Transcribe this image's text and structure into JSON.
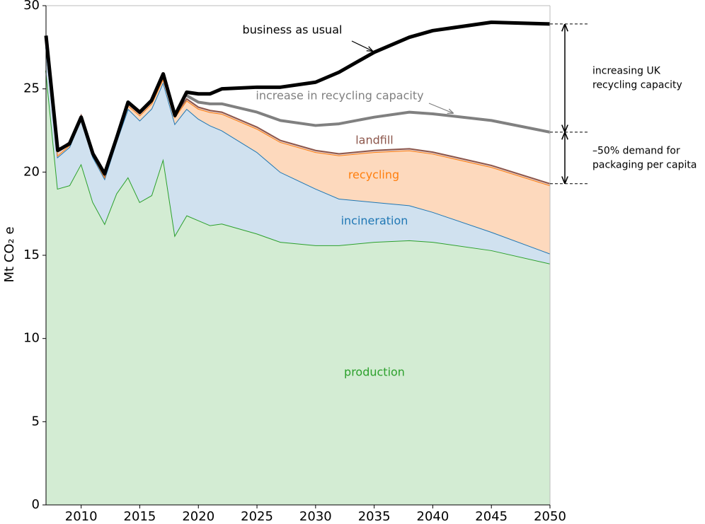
{
  "chart_data": {
    "type": "area",
    "ylabel": "Mt CO₂ e",
    "x": [
      2007,
      2008,
      2009,
      2010,
      2011,
      2012,
      2013,
      2014,
      2015,
      2016,
      2017,
      2018,
      2019,
      2020,
      2021,
      2022,
      2025,
      2027,
      2030,
      2032,
      2035,
      2038,
      2040,
      2045,
      2050
    ],
    "xlim": [
      2007,
      2050
    ],
    "xticks": [
      2010,
      2015,
      2020,
      2025,
      2030,
      2035,
      2040,
      2045,
      2050
    ],
    "ylim": [
      0,
      30
    ],
    "yticks": [
      0,
      5,
      10,
      15,
      20,
      25,
      30
    ],
    "series": [
      {
        "name": "production",
        "kind": "area",
        "color": "#2ca02c",
        "fill": "#d3ecd3",
        "values": [
          26.1,
          19.0,
          19.2,
          20.5,
          18.2,
          16.9,
          18.7,
          19.7,
          18.2,
          18.6,
          20.8,
          16.2,
          17.4,
          17.1,
          16.8,
          16.9,
          16.3,
          15.8,
          15.6,
          15.6,
          15.8,
          15.9,
          15.8,
          15.3,
          14.5
        ]
      },
      {
        "name": "incineration",
        "kind": "area",
        "color": "#1f77b4",
        "fill": "#d0e1ef",
        "values": [
          1.4,
          1.9,
          2.3,
          2.7,
          2.7,
          2.7,
          3.1,
          4.1,
          4.9,
          5.2,
          4.6,
          6.7,
          6.4,
          6.1,
          6.0,
          5.6,
          4.9,
          4.2,
          3.4,
          2.8,
          2.4,
          2.1,
          1.8,
          1.1,
          0.6
        ]
      },
      {
        "name": "recycling",
        "kind": "area",
        "color": "#ff7f0e",
        "fill": "#fdd9bd",
        "values": [
          0.2,
          0.1,
          0.1,
          0.1,
          0.1,
          0.1,
          0.2,
          0.2,
          0.3,
          0.3,
          0.2,
          0.4,
          0.5,
          0.6,
          0.8,
          1.0,
          1.4,
          1.8,
          2.2,
          2.6,
          3.0,
          3.3,
          3.5,
          3.9,
          4.1
        ]
      },
      {
        "name": "landfill",
        "kind": "area",
        "color": "#8c564b",
        "fill": "#e8cfc8",
        "values": [
          0.4,
          0.3,
          0.2,
          0.1,
          0.1,
          0.1,
          0.1,
          0.1,
          0.1,
          0.1,
          0.1,
          0.1,
          0.1,
          0.1,
          0.1,
          0.1,
          0.1,
          0.1,
          0.1,
          0.1,
          0.1,
          0.1,
          0.1,
          0.1,
          0.1
        ]
      },
      {
        "name": "increase in recycling capacity",
        "kind": "line",
        "color": "#808080",
        "values": [
          null,
          null,
          null,
          null,
          null,
          null,
          null,
          null,
          null,
          null,
          null,
          null,
          24.6,
          24.2,
          24.1,
          24.1,
          23.6,
          23.1,
          22.8,
          22.9,
          23.3,
          23.6,
          23.5,
          23.1,
          22.4
        ]
      },
      {
        "name": "business as usual",
        "kind": "line",
        "color": "#000000",
        "values": [
          28.2,
          21.3,
          21.7,
          23.3,
          21.1,
          19.9,
          22.0,
          24.2,
          23.6,
          24.3,
          25.9,
          23.4,
          24.8,
          24.7,
          24.7,
          25.0,
          25.1,
          25.1,
          25.4,
          26.0,
          27.2,
          28.1,
          28.5,
          29.0,
          28.9
        ]
      }
    ],
    "annotations": [
      {
        "lines": [
          "increasing UK",
          "recycling capacity"
        ]
      },
      {
        "lines": [
          "–50% demand for",
          "packaging per capita"
        ]
      }
    ]
  }
}
